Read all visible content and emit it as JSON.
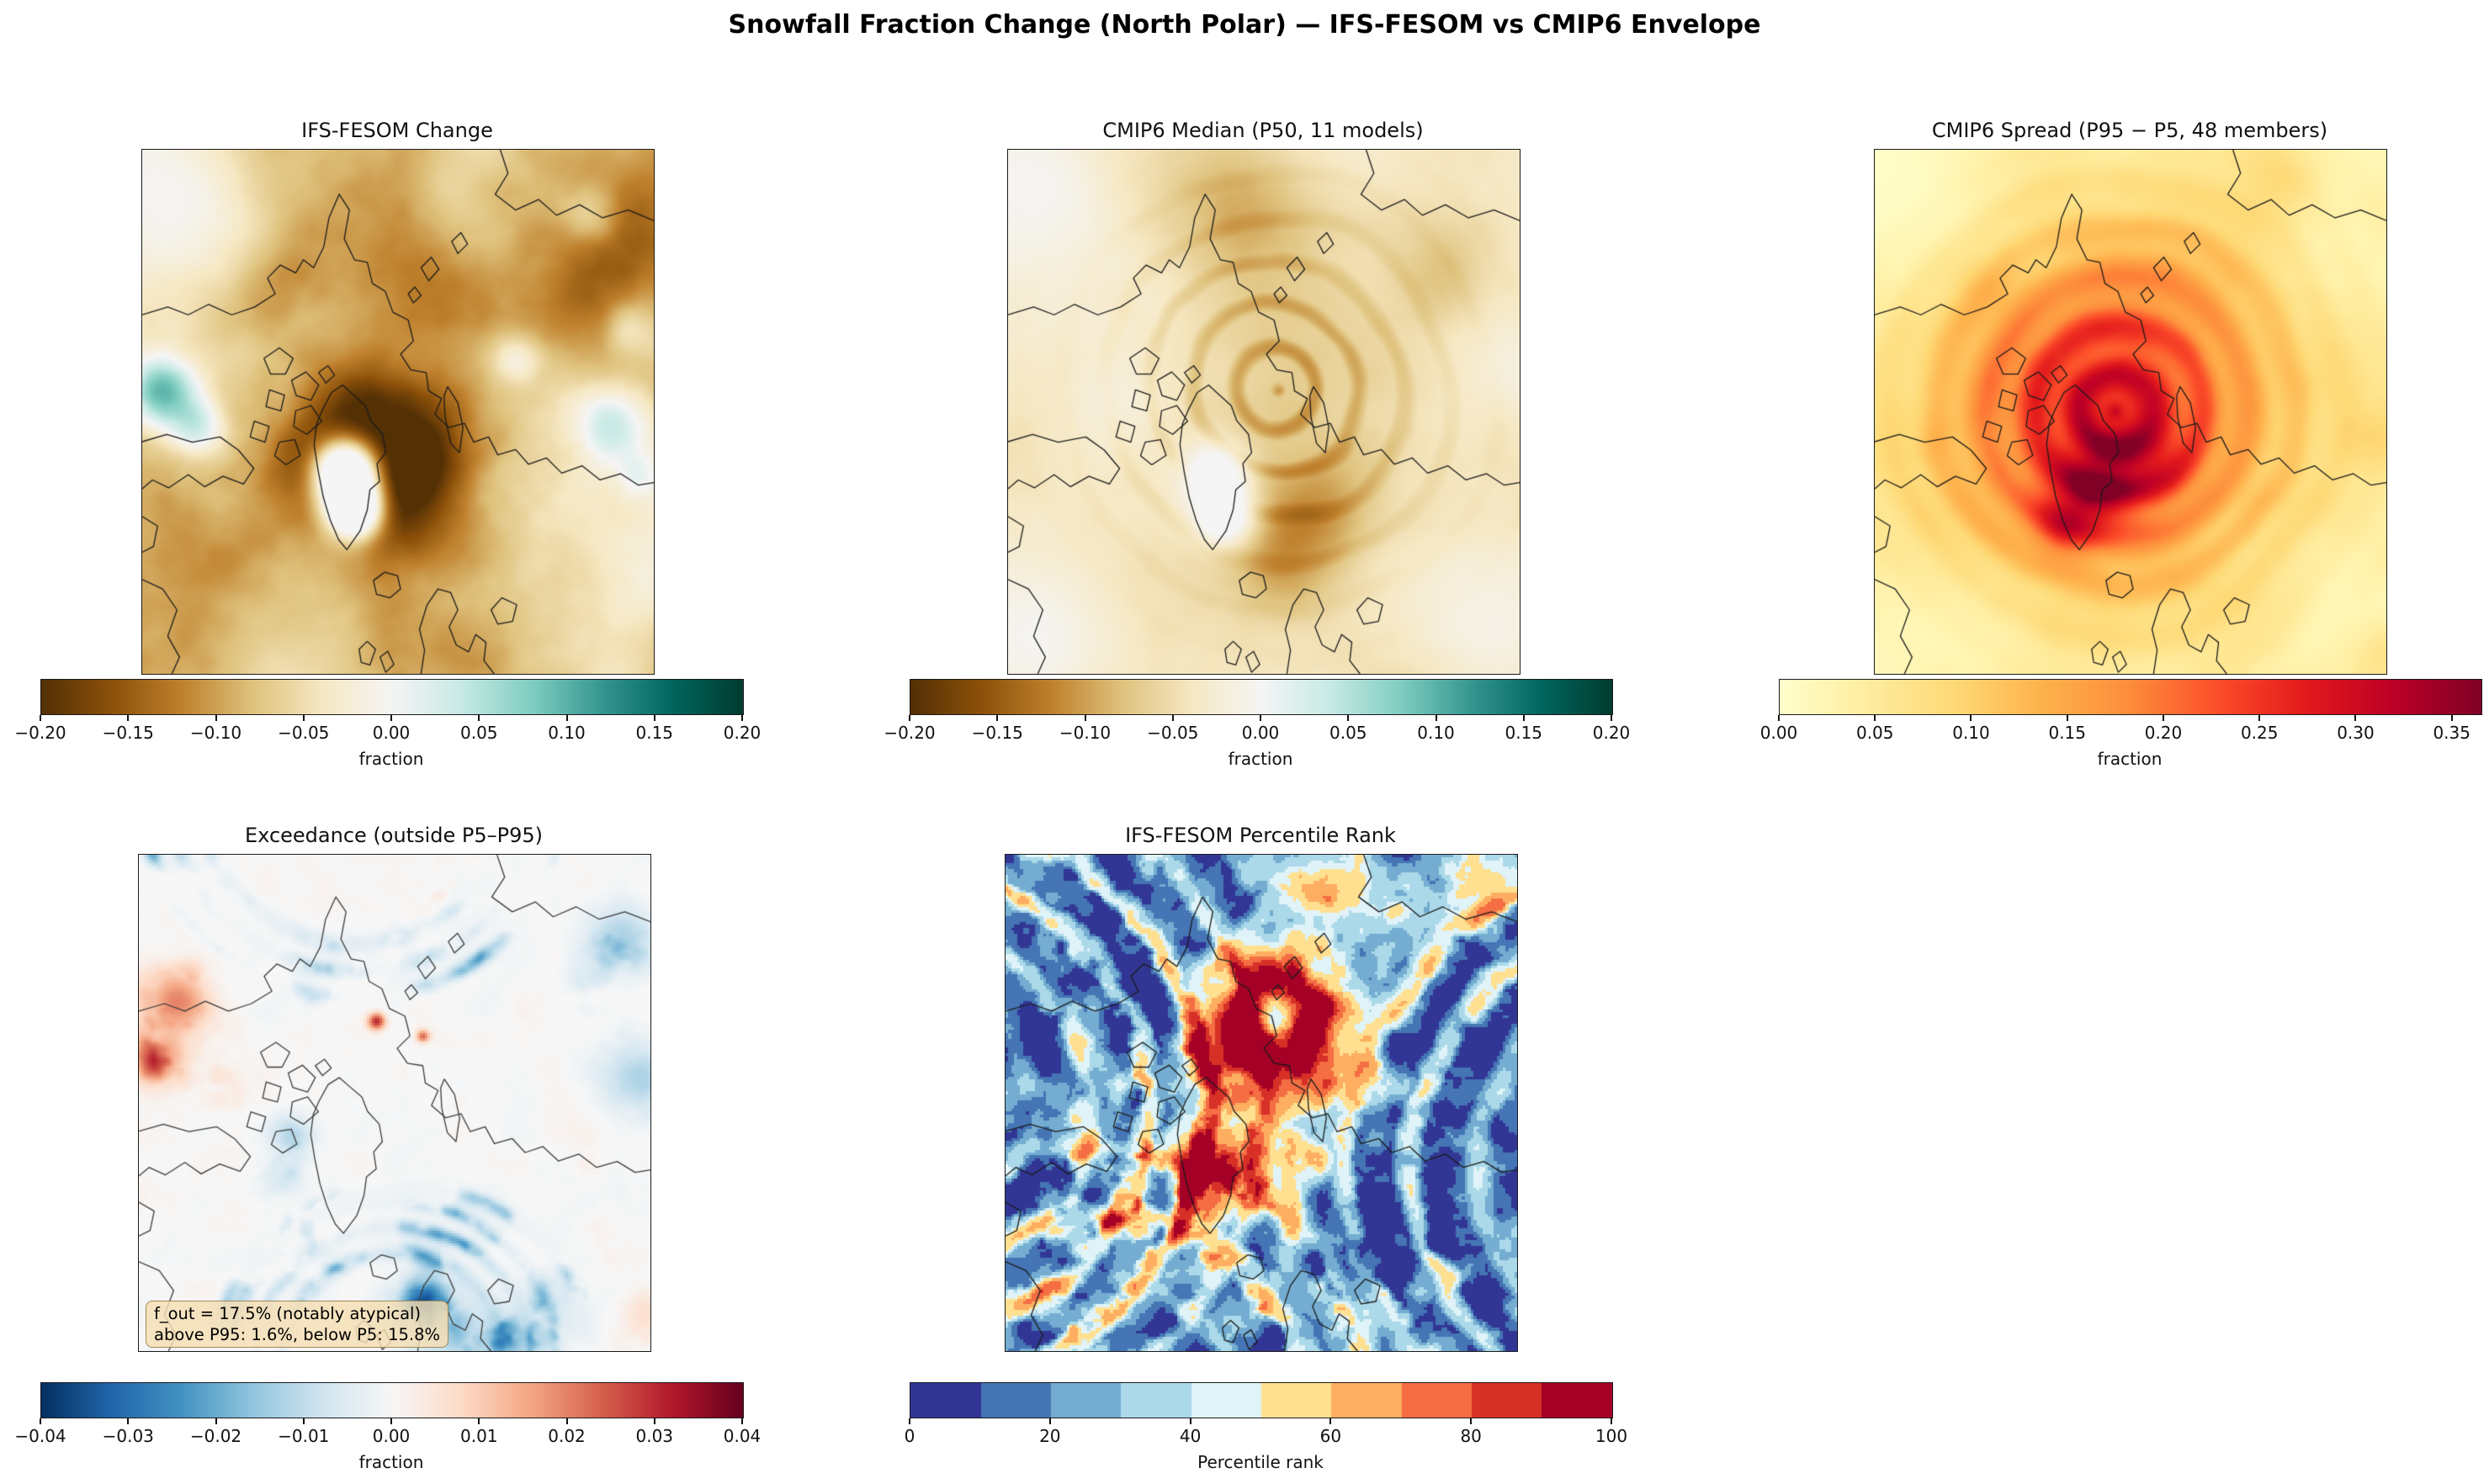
{
  "figure_title": "Snowfall Fraction Change (North Polar) — IFS-FESOM vs CMIP6 Envelope",
  "panels": [
    {
      "title": "IFS-FESOM Change",
      "colorbar": {
        "label": "fraction",
        "colormap": "BrBG",
        "vmin": -0.2,
        "vmax": 0.2,
        "tick_labels": [
          "−0.20",
          "−0.15",
          "−0.10",
          "−0.05",
          "0.00",
          "0.05",
          "0.10",
          "0.15",
          "0.20"
        ],
        "tick_values": [
          -0.2,
          -0.15,
          -0.1,
          -0.05,
          0,
          0.05,
          0.1,
          0.15,
          0.2
        ]
      }
    },
    {
      "title": "CMIP6 Median (P50, 11 models)",
      "colorbar": {
        "label": "fraction",
        "colormap": "BrBG",
        "vmin": -0.2,
        "vmax": 0.2,
        "tick_labels": [
          "−0.20",
          "−0.15",
          "−0.10",
          "−0.05",
          "0.00",
          "0.05",
          "0.10",
          "0.15",
          "0.20"
        ],
        "tick_values": [
          -0.2,
          -0.15,
          -0.1,
          -0.05,
          0,
          0.05,
          0.1,
          0.15,
          0.2
        ]
      }
    },
    {
      "title": "CMIP6 Spread (P95 − P5, 48 members)",
      "colorbar": {
        "label": "fraction",
        "colormap": "YlOrRd",
        "vmin": 0,
        "vmax": 0.365,
        "tick_labels": [
          "0.00",
          "0.05",
          "0.10",
          "0.15",
          "0.20",
          "0.25",
          "0.30",
          "0.35"
        ],
        "tick_values": [
          0,
          0.05,
          0.1,
          0.15,
          0.2,
          0.25,
          0.3,
          0.35
        ]
      }
    },
    {
      "title": "Exceedance (outside P5–P95)",
      "colorbar": {
        "label": "fraction",
        "colormap": "RdBu_r",
        "vmin": -0.04,
        "vmax": 0.04,
        "tick_labels": [
          "−0.04",
          "−0.03",
          "−0.02",
          "−0.01",
          "0.00",
          "0.01",
          "0.02",
          "0.03",
          "0.04"
        ],
        "tick_values": [
          -0.04,
          -0.03,
          -0.02,
          -0.01,
          0,
          0.01,
          0.02,
          0.03,
          0.04
        ]
      },
      "annotation": {
        "line1": "f_out = 17.5% (notably atypical)",
        "line2": "above P95: 1.6%, below P5: 15.8%"
      }
    },
    {
      "title": "IFS-FESOM Percentile Rank",
      "colorbar": {
        "label": "Percentile rank",
        "colormap": "RdYlBu_r_10",
        "vmin": 0,
        "vmax": 100,
        "tick_labels": [
          "0",
          "20",
          "40",
          "60",
          "80",
          "100"
        ],
        "tick_values": [
          0,
          20,
          40,
          60,
          80,
          100
        ]
      }
    }
  ],
  "colormaps": {
    "BrBG": [
      "#543005",
      "#8c510a",
      "#bf812d",
      "#dfc27d",
      "#f6e8c3",
      "#f5f5f5",
      "#c7eae5",
      "#80cdc1",
      "#35978f",
      "#01665e",
      "#003c30"
    ],
    "YlOrRd": [
      "#ffffcc",
      "#ffeda0",
      "#fed976",
      "#feb24c",
      "#fd8d3c",
      "#fc4e2a",
      "#e31a1c",
      "#bd0026",
      "#800026"
    ],
    "RdBu_r": [
      "#053061",
      "#2166ac",
      "#4393c3",
      "#92c5de",
      "#d1e5f0",
      "#f7f7f7",
      "#fddbc7",
      "#f4a582",
      "#d6604d",
      "#b2182b",
      "#67001f"
    ],
    "RdYlBu_r_10": [
      "#313695",
      "#4575b4",
      "#74add1",
      "#abd9e9",
      "#e0f3f8",
      "#fee090",
      "#fdae61",
      "#f46d43",
      "#d73027",
      "#a50026"
    ]
  },
  "chart_data": [
    {
      "type": "heatmap",
      "title": "IFS-FESOM Change",
      "projection": "north polar stereographic map",
      "variable": "snowfall fraction change",
      "colormap": "BrBG",
      "vmin": -0.2,
      "vmax": 0.2,
      "colorbar_label": "fraction",
      "colorbar_ticks": [
        -0.2,
        -0.15,
        -0.1,
        -0.05,
        0.0,
        0.05,
        0.1,
        0.15,
        0.2
      ],
      "pattern_summary": "Widespread decreases (brown, about -0.05 to -0.20) over most of the Arctic; strongest dark-brown band around southern/eastern Greenland, Baffin Bay and the Nordic-Barents seas; near-zero (white) over the Greenland ice sheet and the top-left (Pacific) corner; scattered weak increases (pale teal, +0.02 to +0.08) over the North Pacific edge and parts of eastern Siberia."
    },
    {
      "type": "heatmap",
      "title": "CMIP6 Median (P50, 11 models)",
      "projection": "north polar stereographic map",
      "variable": "snowfall fraction change, multi-model median",
      "colormap": "BrBG",
      "vmin": -0.2,
      "vmax": 0.2,
      "colorbar_label": "fraction",
      "colorbar_ticks": [
        -0.2,
        -0.15,
        -0.1,
        -0.05,
        0.0,
        0.05,
        0.1,
        0.15,
        0.2
      ],
      "pattern_summary": "Weak decreases (about -0.02 to -0.08, light tan) nearly everywhere, with concentric ring artifacts centred on the pole; a darker decline patch over the Barents/Kara sector and near the Bering Strait; near-zero (white) over the Greenland ice sheet and at the map corners; no significant increases."
    },
    {
      "type": "heatmap",
      "title": "CMIP6 Spread (P95 − P5, 48 members)",
      "projection": "north polar stereographic map",
      "variable": "inter-member spread of snowfall fraction change",
      "colormap": "YlOrRd",
      "vmin": 0.0,
      "vmax": 0.365,
      "colorbar_label": "fraction",
      "colorbar_ticks": [
        0.0,
        0.05,
        0.1,
        0.15,
        0.2,
        0.25,
        0.3,
        0.35
      ],
      "pattern_summary": "Spread of 0.15-0.37 (orange to dark red) over the central Arctic Ocean, peaking above 0.30 (maroon) just east and southeast of Greenland and near the pole, with ring-shaped texture; decays to 0.02-0.08 (pale yellow) toward the corners, palest in the top-left corner."
    },
    {
      "type": "heatmap",
      "title": "Exceedance (outside P5–P95)",
      "projection": "north polar stereographic map",
      "variable": "amount by which IFS-FESOM change falls outside the CMIP6 P5-P95 envelope",
      "colormap": "RdBu_r",
      "vmin": -0.04,
      "vmax": 0.04,
      "colorbar_label": "fraction",
      "colorbar_ticks": [
        -0.04,
        -0.03,
        -0.02,
        -0.01,
        0.0,
        0.01,
        0.02,
        0.03,
        0.04
      ],
      "annotation": {
        "f_out_pct": 17.5,
        "f_out_note": "notably atypical",
        "above_p95_pct": 1.6,
        "below_p5_pct": 15.8
      },
      "pattern_summary": "Mostly zero (white); clusters of negative exceedance (blue, -0.01 to -0.04) in arc-shaped bands over the Nordic Seas/Scandinavia, along the top (Bering) edge and over eastern Siberia on the right; positive exceedance (red) patches in the top-left (NW Pacific) corner and a few scattered spots near the centre and right."
    },
    {
      "type": "heatmap",
      "title": "IFS-FESOM Percentile Rank",
      "projection": "north polar stereographic map",
      "variable": "percentile rank of IFS-FESOM change within the CMIP6 member distribution",
      "colormap": "RdYlBu_r, 10 discrete bins",
      "vmin": 0,
      "vmax": 100,
      "colorbar_label": "Percentile rank",
      "colorbar_ticks": [
        0,
        20,
        40,
        60,
        80,
        100
      ],
      "pattern_summary": "Very noisy field: large regions at the 0-20th percentile (dark blue) over Siberia, the North Atlantic and Pacific sectors; 30-50th percentile (pale blue) over the central Arctic Ocean; concentric arcs of 70-100th percentile (orange/dark red) north of the Kara Sea near the pole, plus speckled red arc bands on the far left, lower left and right of the map; pale yellow-orange speckle over Greenland."
    }
  ]
}
